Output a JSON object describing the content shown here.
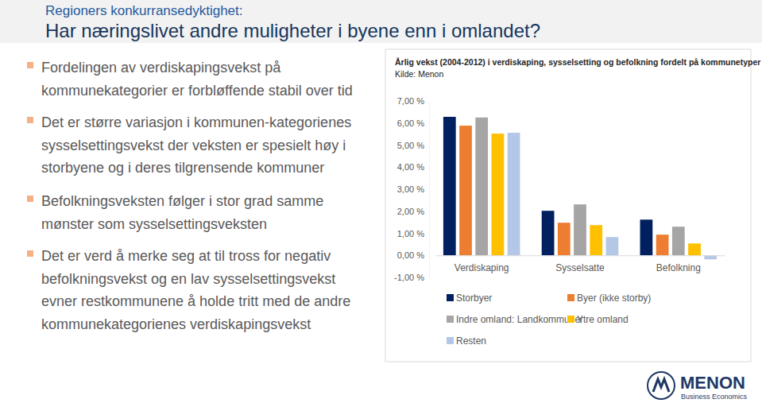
{
  "slide": {
    "header": {
      "kicker": "Regioners konkurransedyktighet:",
      "title": "Har næringslivet andre muligheter i byene enn i omlandet?"
    },
    "bullets": [
      [
        "Fordelingen av verdiskapingsvekst på",
        "kommunekategorier er forbløffende stabil over tid"
      ],
      [
        "Det er større variasjon i kommunen-kategorienes",
        "sysselsettingsvekst der veksten er spesielt høy i",
        "storbyene og i deres tilgrensende kommuner"
      ],
      [
        "Befolkningsveksten følger i stor grad samme",
        "mønster som sysselsettingsveksten"
      ],
      [
        "Det er verd å merke seg at til tross for negativ",
        "befolkningsvekst og en lav sysselsettingsvekst",
        "evner restkommunene å holde tritt med de andre",
        "kommunekategorienes verdiskapingsvekst"
      ]
    ],
    "logo": {
      "name": "MENON",
      "tagline": "Business Economics"
    }
  },
  "chart_data": {
    "type": "bar",
    "title": "Årlig vekst (2004-2012) i verdiskaping, sysselsetting og befolkning fordelt på kommunetyper",
    "subtitle": "Kilde: Menon",
    "categories": [
      "Verdiskaping",
      "Sysselsatte",
      "Befolkning"
    ],
    "series": [
      {
        "name": "Storbyer",
        "color": "#002060",
        "values": [
          6.28,
          2.02,
          1.62
        ]
      },
      {
        "name": "Byer (ikke storby)",
        "color": "#ED7D31",
        "values": [
          5.88,
          1.48,
          0.94
        ]
      },
      {
        "name": "Indre omland: Landkommuner",
        "color": "#A5A5A5",
        "values": [
          6.25,
          2.31,
          1.3
        ]
      },
      {
        "name": "Ytre omland",
        "color": "#FFC000",
        "values": [
          5.52,
          1.37,
          0.54
        ]
      },
      {
        "name": "Resten",
        "color": "#B4C7E7",
        "values": [
          5.56,
          0.83,
          -0.18
        ]
      }
    ],
    "ylim": [
      -1,
      7
    ],
    "yticks": [
      {
        "value": -1,
        "label": "-1,00 %"
      },
      {
        "value": 0,
        "label": "0,00 %"
      },
      {
        "value": 1,
        "label": "1,00 %"
      },
      {
        "value": 2,
        "label": "2,00 %"
      },
      {
        "value": 3,
        "label": "3,00 %"
      },
      {
        "value": 4,
        "label": "4,00 %"
      },
      {
        "value": 5,
        "label": "5,00 %"
      },
      {
        "value": 6,
        "label": "6,00 %"
      },
      {
        "value": 7,
        "label": "7,00 %"
      }
    ],
    "grid": false,
    "legend": "bottom"
  }
}
